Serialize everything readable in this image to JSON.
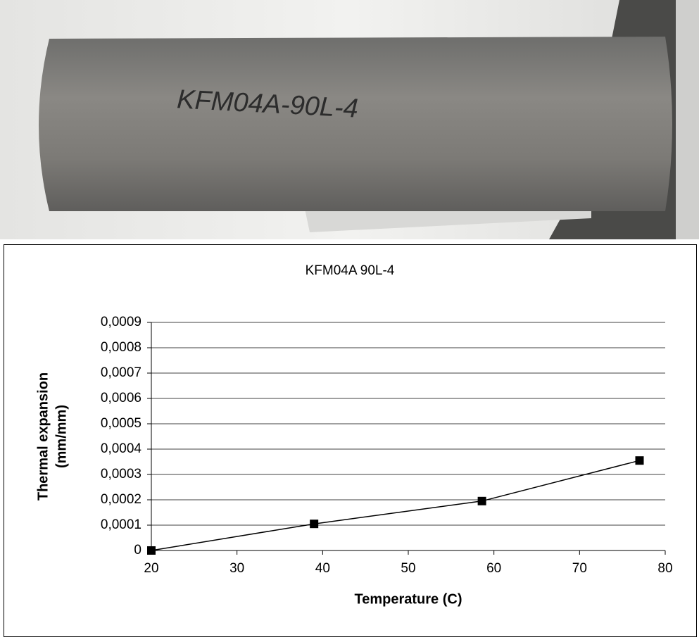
{
  "photo_label": "KFM04A-90L-4",
  "chart_data": {
    "type": "line",
    "title": "KFM04A 90L-4",
    "xlabel": "Temperature (C)",
    "ylabel": [
      "Thermal expansion",
      "(mm/mm)"
    ],
    "x": [
      20,
      39,
      58.6,
      77
    ],
    "series": [
      {
        "name": "KFM04A 90L-4",
        "color": "#000000",
        "marker": "square",
        "values": [
          0,
          0.000105,
          0.000195,
          0.000355
        ]
      }
    ],
    "xlim": [
      20,
      80
    ],
    "xticks": [
      20,
      30,
      40,
      50,
      60,
      70,
      80
    ],
    "ylim": [
      0,
      0.0009
    ],
    "yticks": [
      0,
      {
        "value": 0.0001,
        "label": "0,0001"
      },
      {
        "value": 0.0002,
        "label": "0,0002"
      },
      {
        "value": 0.0003,
        "label": "0,0003"
      },
      {
        "value": 0.0004,
        "label": "0,0004"
      },
      {
        "value": 0.0005,
        "label": "0,0005"
      },
      {
        "value": 0.0006,
        "label": "0,0006"
      },
      {
        "value": 0.0007,
        "label": "0,0007"
      },
      {
        "value": 0.0008,
        "label": "0,0008"
      },
      {
        "value": 0.0009,
        "label": "0,0009"
      }
    ],
    "grid": true
  }
}
